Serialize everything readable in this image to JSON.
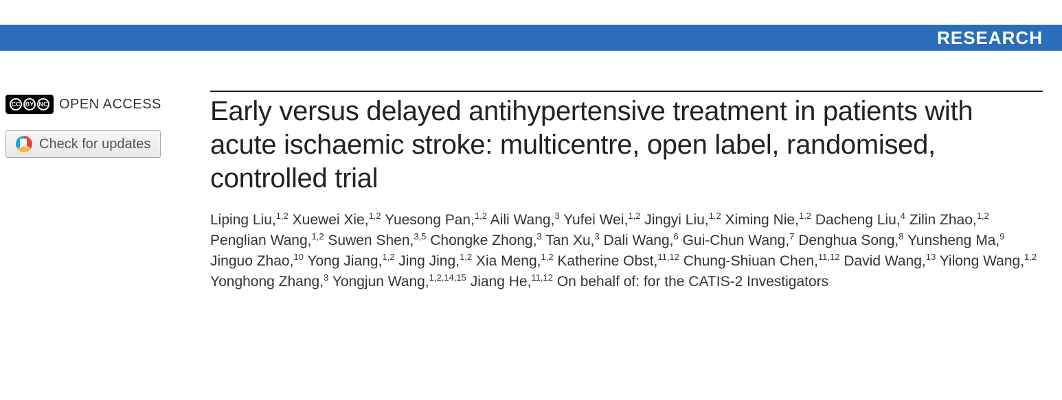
{
  "banner": {
    "section_label": "RESEARCH",
    "bg_color": "#2a6ebb",
    "text_color": "#ffffff"
  },
  "left": {
    "open_access_label": "OPEN ACCESS",
    "updates_label": "Check for updates"
  },
  "article": {
    "title": "Early versus delayed antihypertensive treatment in patients with acute ischaemic stroke: multicentre, open label, randomised, controlled trial",
    "authors": [
      {
        "name": "Liping Liu",
        "aff": "1,2"
      },
      {
        "name": "Xuewei Xie",
        "aff": "1,2"
      },
      {
        "name": "Yuesong Pan",
        "aff": "1,2"
      },
      {
        "name": "Aili Wang",
        "aff": "3"
      },
      {
        "name": "Yufei Wei",
        "aff": "1,2"
      },
      {
        "name": "Jingyi Liu",
        "aff": "1,2"
      },
      {
        "name": "Ximing Nie",
        "aff": "1,2"
      },
      {
        "name": "Dacheng Liu",
        "aff": "4"
      },
      {
        "name": "Zilin Zhao",
        "aff": "1,2"
      },
      {
        "name": "Penglian Wang",
        "aff": "1,2"
      },
      {
        "name": "Suwen Shen",
        "aff": "3,5"
      },
      {
        "name": "Chongke Zhong",
        "aff": "3"
      },
      {
        "name": "Tan Xu",
        "aff": "3"
      },
      {
        "name": "Dali Wang",
        "aff": "6"
      },
      {
        "name": "Gui-Chun Wang",
        "aff": "7"
      },
      {
        "name": "Denghua Song",
        "aff": "8"
      },
      {
        "name": "Yunsheng Ma",
        "aff": "9"
      },
      {
        "name": "Jinguo Zhao",
        "aff": "10"
      },
      {
        "name": "Yong Jiang",
        "aff": "1,2"
      },
      {
        "name": "Jing Jing",
        "aff": "1,2"
      },
      {
        "name": "Xia Meng",
        "aff": "1,2"
      },
      {
        "name": "Katherine Obst",
        "aff": "11,12"
      },
      {
        "name": "Chung-Shiuan Chen",
        "aff": "11,12"
      },
      {
        "name": "David Wang",
        "aff": "13"
      },
      {
        "name": "Yilong Wang",
        "aff": "1,2"
      },
      {
        "name": "Yonghong Zhang",
        "aff": "3"
      },
      {
        "name": "Yongjun Wang",
        "aff": "1,2,14,15"
      },
      {
        "name": "Jiang He",
        "aff": "11,12"
      }
    ],
    "behalf": "On behalf of: for the CATIS-2 Investigators"
  }
}
